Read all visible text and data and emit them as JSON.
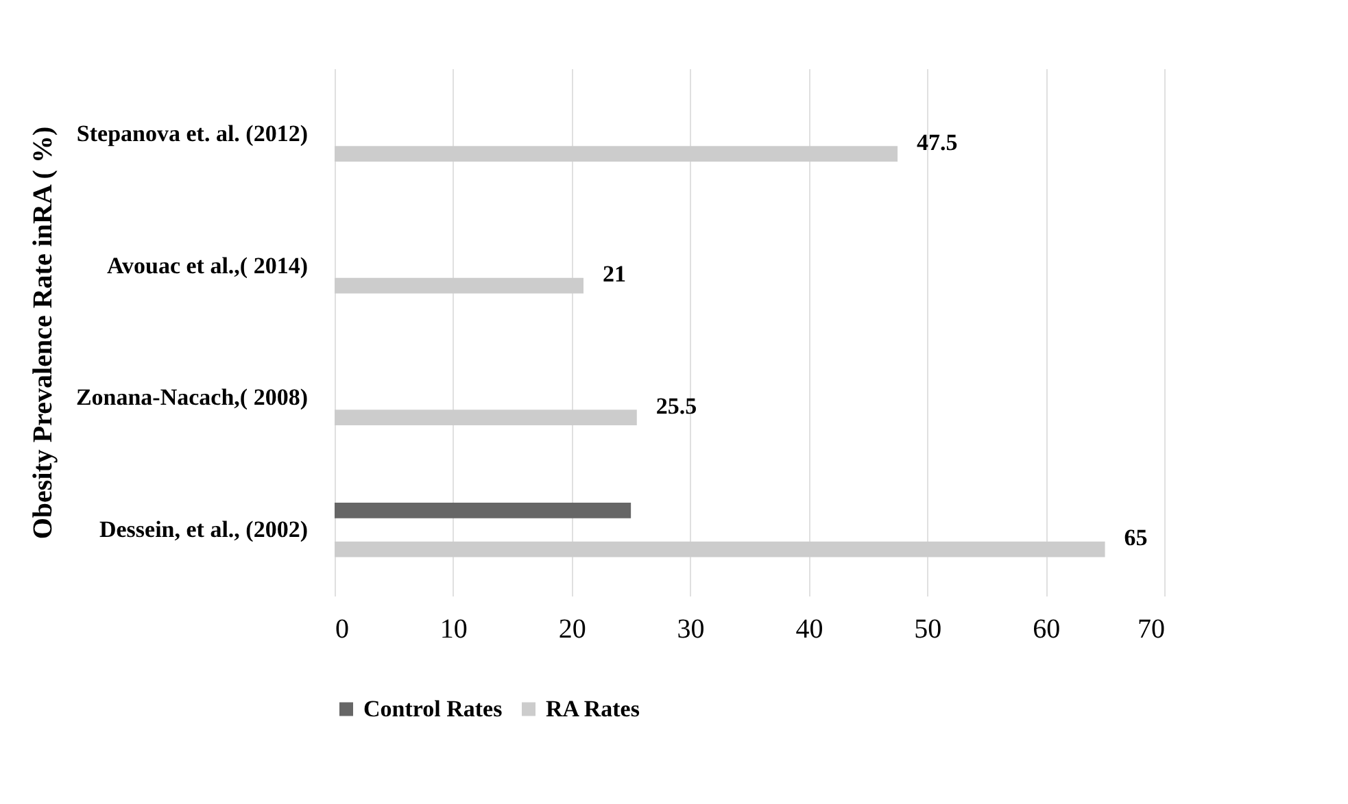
{
  "chart_data": {
    "type": "bar",
    "orientation": "horizontal",
    "ylabel": "Obesity Prevalence Rate inRA ( %)",
    "categories": [
      "Stepanova et. al. (2012)",
      "Avouac et al.,( 2014)",
      "Zonana-Nacach,( 2008)",
      "Dessein, et al., (2002)"
    ],
    "series": [
      {
        "name": "Control Rates",
        "color": "#666666",
        "values": [
          null,
          null,
          null,
          25
        ]
      },
      {
        "name": "RA Rates",
        "color": "#cccccc",
        "values": [
          47.5,
          21,
          25.5,
          65
        ],
        "value_labels": [
          "47.5",
          "21",
          "25.5",
          "65"
        ]
      }
    ],
    "xlim": [
      0,
      70
    ],
    "xticks": [
      0,
      10,
      20,
      30,
      40,
      50,
      60,
      70
    ],
    "grid": "x",
    "legend": "bottom"
  }
}
